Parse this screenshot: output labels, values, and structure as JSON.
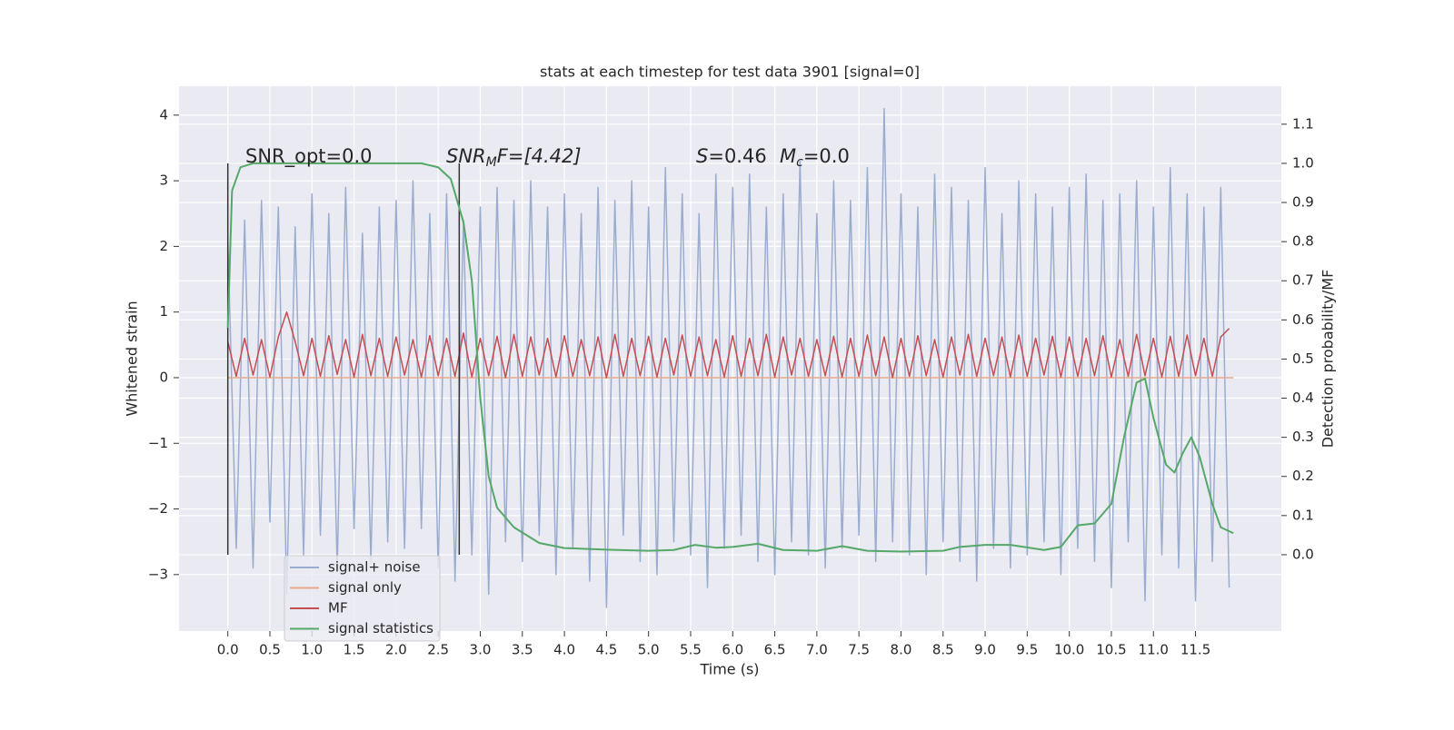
{
  "chart_data": {
    "type": "line",
    "title": "stats at each timestep for test data 3901 [signal=0]",
    "x_label": "Time (s)",
    "y_label": "Whitened strain",
    "y2_label": "Detection probability/MF",
    "grid": true,
    "background": "#eaeaf2",
    "legend": "lower left",
    "xlim": [
      -0.58,
      12.52
    ],
    "ylim": [
      -3.86,
      4.44
    ],
    "y2lim": [
      -0.195,
      1.197
    ],
    "xticks": [
      {
        "value": 0,
        "label": "0.0"
      },
      0.5,
      {
        "value": 1,
        "label": "1.0"
      },
      1.5,
      {
        "value": 2,
        "label": "2.0"
      },
      2.5,
      {
        "value": 3,
        "label": "3.0"
      },
      3.5,
      {
        "value": 4,
        "label": "4.0"
      },
      4.5,
      {
        "value": 5,
        "label": "5.0"
      },
      5.5,
      {
        "value": 6,
        "label": "6.0"
      },
      6.5,
      {
        "value": 7,
        "label": "7.0"
      },
      7.5,
      {
        "value": 8,
        "label": "8.0"
      },
      8.5,
      {
        "value": 9,
        "label": "9.0"
      },
      9.5,
      {
        "value": 10,
        "label": "10.0"
      },
      10.5,
      {
        "value": 11,
        "label": "11.0"
      },
      11.5
    ],
    "yticks": [
      {
        "value": -3,
        "label": "−3"
      },
      {
        "value": -2,
        "label": "−2"
      },
      {
        "value": -1,
        "label": "−1"
      },
      0,
      1,
      2,
      3,
      4
    ],
    "y2ticks": [
      {
        "value": 0,
        "label": "0.0"
      },
      0.1,
      0.2,
      0.3,
      0.4,
      0.5,
      0.6,
      0.7,
      0.8,
      0.9,
      {
        "value": 1,
        "label": "1.0"
      },
      1.1
    ],
    "vlines": {
      "x": [
        0,
        2.75
      ],
      "y2_span": [
        0,
        1
      ],
      "color": "#333333"
    },
    "annotations": {
      "snr_opt": "SNR_opt=0.0",
      "snr_mf": {
        "symbol": "SNR",
        "subscript": "M",
        "rest": "F=[4.42]"
      },
      "s": {
        "symbol": "S",
        "rest": "=0.46"
      },
      "mc": {
        "symbol": "M",
        "subscript": "c",
        "rest": "=0.0"
      }
    },
    "series": [
      {
        "name": "signal+ noise",
        "color": "#9aadd1",
        "x": [
          0,
          0.1,
          0.2,
          0.3,
          0.4,
          0.5,
          0.6,
          0.7,
          0.8,
          0.9,
          1,
          1.1,
          1.2,
          1.3,
          1.4,
          1.5,
          1.6,
          1.7,
          1.8,
          1.9,
          2,
          2.1,
          2.2,
          2.3,
          2.4,
          2.5,
          2.6,
          2.7,
          2.8,
          2.9,
          3,
          3.1,
          3.2,
          3.3,
          3.4,
          3.5,
          3.6,
          3.7,
          3.8,
          3.9,
          4,
          4.1,
          4.2,
          4.3,
          4.4,
          4.5,
          4.6,
          4.7,
          4.8,
          4.9,
          5,
          5.1,
          5.2,
          5.3,
          5.4,
          5.5,
          5.6,
          5.7,
          5.8,
          5.9,
          6,
          6.1,
          6.2,
          6.3,
          6.4,
          6.5,
          6.6,
          6.7,
          6.8,
          6.9,
          7,
          7.1,
          7.2,
          7.3,
          7.4,
          7.5,
          7.6,
          7.7,
          7.8,
          7.9,
          8,
          8.1,
          8.2,
          8.3,
          8.4,
          8.5,
          8.6,
          8.7,
          8.8,
          8.9,
          9,
          9.1,
          9.2,
          9.3,
          9.4,
          9.5,
          9.6,
          9.7,
          9.8,
          9.9,
          10,
          10.1,
          10.2,
          10.3,
          10.4,
          10.5,
          10.6,
          10.7,
          10.8,
          10.9,
          11,
          11.1,
          11.2,
          11.3,
          11.4,
          11.5,
          11.6,
          11.7,
          11.8,
          11.9
        ],
        "values": [
          2.1,
          -2.6,
          2.4,
          -2.9,
          2.7,
          -2.2,
          2.6,
          -3.3,
          2.3,
          -2.7,
          2.8,
          -2.4,
          2.5,
          -2.9,
          2.9,
          -2.3,
          2.2,
          -2.8,
          2.6,
          -2.5,
          2.7,
          -2.6,
          3.0,
          -2.3,
          2.5,
          -2.9,
          2.8,
          -3.1,
          2.4,
          -2.7,
          2.6,
          -3.3,
          2.9,
          -2.5,
          2.7,
          -2.8,
          3.0,
          -2.4,
          2.6,
          -3.0,
          2.8,
          -2.6,
          2.5,
          -3.1,
          2.9,
          -3.5,
          2.7,
          -2.4,
          3.0,
          -2.8,
          2.6,
          -3.0,
          3.2,
          -2.5,
          2.8,
          -2.7,
          2.5,
          -3.2,
          3.1,
          -2.6,
          2.9,
          -2.4,
          3.1,
          -2.8,
          2.6,
          -3.0,
          2.8,
          -2.5,
          3.3,
          -2.7,
          2.5,
          -2.9,
          3.0,
          -2.6,
          2.7,
          -2.4,
          3.2,
          -2.8,
          4.1,
          -2.5,
          2.8,
          -2.7,
          2.6,
          -3.0,
          3.1,
          -2.5,
          2.9,
          -2.8,
          2.7,
          -3.1,
          3.2,
          -2.6,
          2.5,
          -2.9,
          3.0,
          -2.7,
          2.8,
          -2.5,
          2.6,
          -3.0,
          2.9,
          -2.6,
          3.1,
          -2.8,
          2.7,
          -3.2,
          2.8,
          -2.5,
          3.0,
          -3.4,
          2.6,
          -2.7,
          3.2,
          -2.9,
          2.8,
          -3.4,
          2.6,
          -2.8,
          2.9,
          -3.2
        ]
      },
      {
        "name": "signal only",
        "color": "#e9a88a",
        "x": [
          0,
          11.95
        ],
        "values": [
          0,
          0
        ]
      },
      {
        "name": "MF",
        "color": "#c44e52",
        "x": [
          0,
          0.1,
          0.2,
          0.3,
          0.4,
          0.5,
          0.6,
          0.7,
          0.8,
          0.9,
          1,
          1.1,
          1.2,
          1.3,
          1.4,
          1.5,
          1.6,
          1.7,
          1.8,
          1.9,
          2,
          2.1,
          2.2,
          2.3,
          2.4,
          2.5,
          2.6,
          2.7,
          2.8,
          2.9,
          3,
          3.1,
          3.2,
          3.3,
          3.4,
          3.5,
          3.6,
          3.7,
          3.8,
          3.9,
          4,
          4.1,
          4.2,
          4.3,
          4.4,
          4.5,
          4.6,
          4.7,
          4.8,
          4.9,
          5,
          5.1,
          5.2,
          5.3,
          5.4,
          5.5,
          5.6,
          5.7,
          5.8,
          5.9,
          6,
          6.1,
          6.2,
          6.3,
          6.4,
          6.5,
          6.6,
          6.7,
          6.8,
          6.9,
          7,
          7.1,
          7.2,
          7.3,
          7.4,
          7.5,
          7.6,
          7.7,
          7.8,
          7.9,
          8,
          8.1,
          8.2,
          8.3,
          8.4,
          8.5,
          8.6,
          8.7,
          8.8,
          8.9,
          9,
          9.1,
          9.2,
          9.3,
          9.4,
          9.5,
          9.6,
          9.7,
          9.8,
          9.9,
          10,
          10.1,
          10.2,
          10.3,
          10.4,
          10.5,
          10.6,
          10.7,
          10.8,
          10.9,
          11,
          11.1,
          11.2,
          11.3,
          11.4,
          11.5,
          11.6,
          11.7,
          11.8,
          11.9
        ],
        "values": [
          0.55,
          0.02,
          0.6,
          0.04,
          0.58,
          0.01,
          0.62,
          1.0,
          0.55,
          0.03,
          0.6,
          0.02,
          0.64,
          0.05,
          0.58,
          0.01,
          0.66,
          0.03,
          0.6,
          0.02,
          0.62,
          0.04,
          0.58,
          0.01,
          0.64,
          0.03,
          0.6,
          0.02,
          0.68,
          0.01,
          0.6,
          0.03,
          0.63,
          0.0,
          0.66,
          0.02,
          0.62,
          0.04,
          0.6,
          0.01,
          0.64,
          0.02,
          0.58,
          0.03,
          0.62,
          0.0,
          0.66,
          0.02,
          0.6,
          0.03,
          0.63,
          0.01,
          0.6,
          0.04,
          0.65,
          0.02,
          0.62,
          0.03,
          0.58,
          0.01,
          0.64,
          0.02,
          0.6,
          0.03,
          0.66,
          0.01,
          0.62,
          0.04,
          0.6,
          0.02,
          0.58,
          0.03,
          0.63,
          0.01,
          0.6,
          0.02,
          0.65,
          0.03,
          0.62,
          0.0,
          0.6,
          0.02,
          0.64,
          0.03,
          0.58,
          0.01,
          0.62,
          0.04,
          0.66,
          0.02,
          0.6,
          0.03,
          0.62,
          0.01,
          0.65,
          0.02,
          0.6,
          0.04,
          0.63,
          0.01,
          0.62,
          0.02,
          0.6,
          0.03,
          0.64,
          0.01,
          0.58,
          0.02,
          0.66,
          0.03,
          0.6,
          0.01,
          0.63,
          0.02,
          0.65,
          0.03,
          0.6,
          0.02,
          0.62,
          0.75
        ]
      },
      {
        "name": "signal statistics",
        "color": "#55a868",
        "axis": "y2",
        "x": [
          0,
          0.05,
          0.15,
          0.3,
          1,
          2,
          2.3,
          2.5,
          2.65,
          2.8,
          2.9,
          3.0,
          3.1,
          3.2,
          3.4,
          3.7,
          4.0,
          4.5,
          5.0,
          5.3,
          5.55,
          5.8,
          6.0,
          6.3,
          6.6,
          7.0,
          7.3,
          7.6,
          8.0,
          8.5,
          8.7,
          9.0,
          9.3,
          9.7,
          9.9,
          10.1,
          10.3,
          10.5,
          10.65,
          10.8,
          10.9,
          11.0,
          11.15,
          11.25,
          11.35,
          11.45,
          11.55,
          11.7,
          11.8,
          11.95
        ],
        "values": [
          0.58,
          0.93,
          0.99,
          1.0,
          1.0,
          1.0,
          1.0,
          0.99,
          0.96,
          0.85,
          0.7,
          0.4,
          0.2,
          0.12,
          0.07,
          0.03,
          0.017,
          0.013,
          0.01,
          0.012,
          0.025,
          0.018,
          0.02,
          0.028,
          0.012,
          0.01,
          0.022,
          0.01,
          0.008,
          0.01,
          0.02,
          0.025,
          0.025,
          0.012,
          0.02,
          0.075,
          0.08,
          0.13,
          0.3,
          0.44,
          0.45,
          0.35,
          0.23,
          0.21,
          0.26,
          0.3,
          0.25,
          0.13,
          0.07,
          0.055
        ]
      }
    ]
  }
}
